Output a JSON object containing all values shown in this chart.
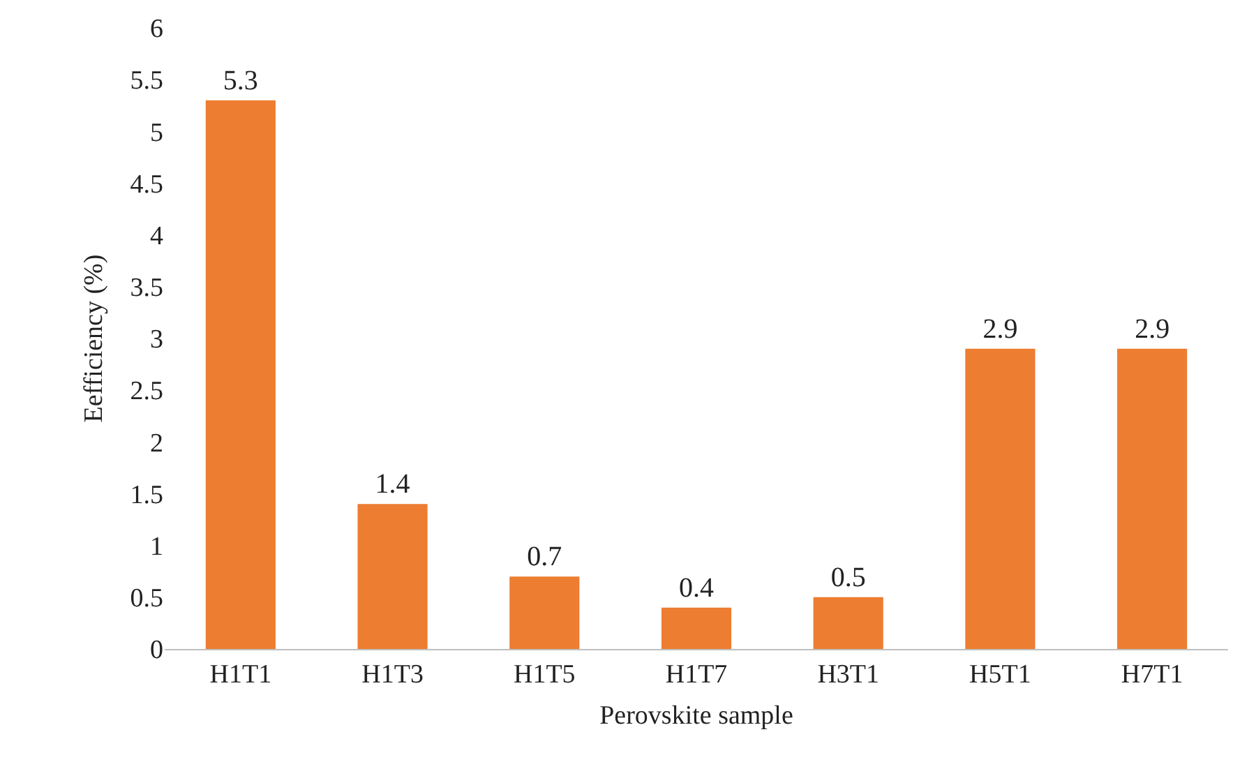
{
  "chart_data": {
    "type": "bar",
    "xlabel": "Perovskite sample",
    "ylabel": "Eefficiency (%)",
    "categories": [
      "H1T1",
      "H1T3",
      "H1T5",
      "H1T7",
      "H3T1",
      "H5T1",
      "H7T1"
    ],
    "values": [
      5.3,
      1.4,
      0.7,
      0.4,
      0.5,
      2.9,
      2.9
    ],
    "color": "#ed7d31",
    "ylim": [
      0,
      6
    ],
    "yticks": [
      0,
      0.5,
      1,
      1.5,
      2,
      2.5,
      3,
      3.5,
      4,
      4.5,
      5,
      5.5,
      6
    ],
    "grid": false,
    "data_labels": true,
    "legend": false
  }
}
